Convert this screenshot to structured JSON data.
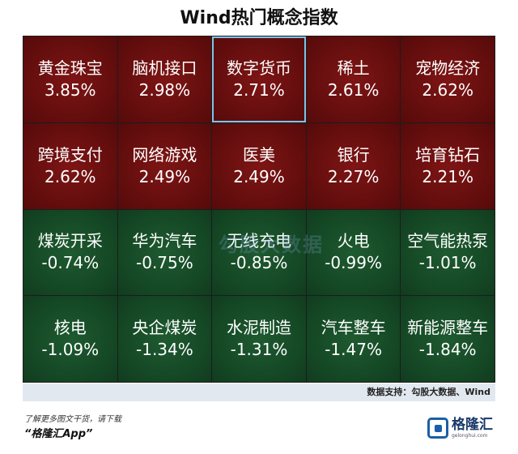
{
  "title": "Wind热门概念指数",
  "source": "数据支持：勾股大数据、Wind",
  "watermark": "勾股大数据",
  "footer": {
    "line1": "了解更多图文干货，请下载",
    "line2": "“格隆汇App”"
  },
  "logo": {
    "name": "格隆汇",
    "url_text": "gelonghui.com"
  },
  "colors": {
    "up": "#620d0d",
    "down": "#144624",
    "selected_border": "#7fc3e8"
  },
  "chart_data": {
    "type": "heatmap",
    "title": "Wind热门概念指数",
    "unit": "%",
    "tiles": [
      {
        "name": "黄金珠宝",
        "value": 3.85,
        "label": "3.85%"
      },
      {
        "name": "脑机接口",
        "value": 2.98,
        "label": "2.98%"
      },
      {
        "name": "数字货币",
        "value": 2.71,
        "label": "2.71%",
        "selected": true
      },
      {
        "name": "稀土",
        "value": 2.61,
        "label": "2.61%"
      },
      {
        "name": "宠物经济",
        "value": 2.62,
        "label": "2.62%"
      },
      {
        "name": "跨境支付",
        "value": 2.62,
        "label": "2.62%"
      },
      {
        "name": "网络游戏",
        "value": 2.49,
        "label": "2.49%"
      },
      {
        "name": "医美",
        "value": 2.49,
        "label": "2.49%"
      },
      {
        "name": "银行",
        "value": 2.27,
        "label": "2.27%"
      },
      {
        "name": "培育钻石",
        "value": 2.21,
        "label": "2.21%"
      },
      {
        "name": "煤炭开采",
        "value": -0.74,
        "label": "-0.74%"
      },
      {
        "name": "华为汽车",
        "value": -0.75,
        "label": "-0.75%"
      },
      {
        "name": "无线充电",
        "value": -0.85,
        "label": "-0.85%"
      },
      {
        "name": "火电",
        "value": -0.99,
        "label": "-0.99%"
      },
      {
        "name": "空气能热泵",
        "value": -1.01,
        "label": "-1.01%"
      },
      {
        "name": "核电",
        "value": -1.09,
        "label": "-1.09%"
      },
      {
        "name": "央企煤炭",
        "value": -1.34,
        "label": "-1.34%"
      },
      {
        "name": "水泥制造",
        "value": -1.31,
        "label": "-1.31%"
      },
      {
        "name": "汽车整车",
        "value": -1.47,
        "label": "-1.47%"
      },
      {
        "name": "新能源整车",
        "value": -1.84,
        "label": "-1.84%"
      }
    ]
  }
}
